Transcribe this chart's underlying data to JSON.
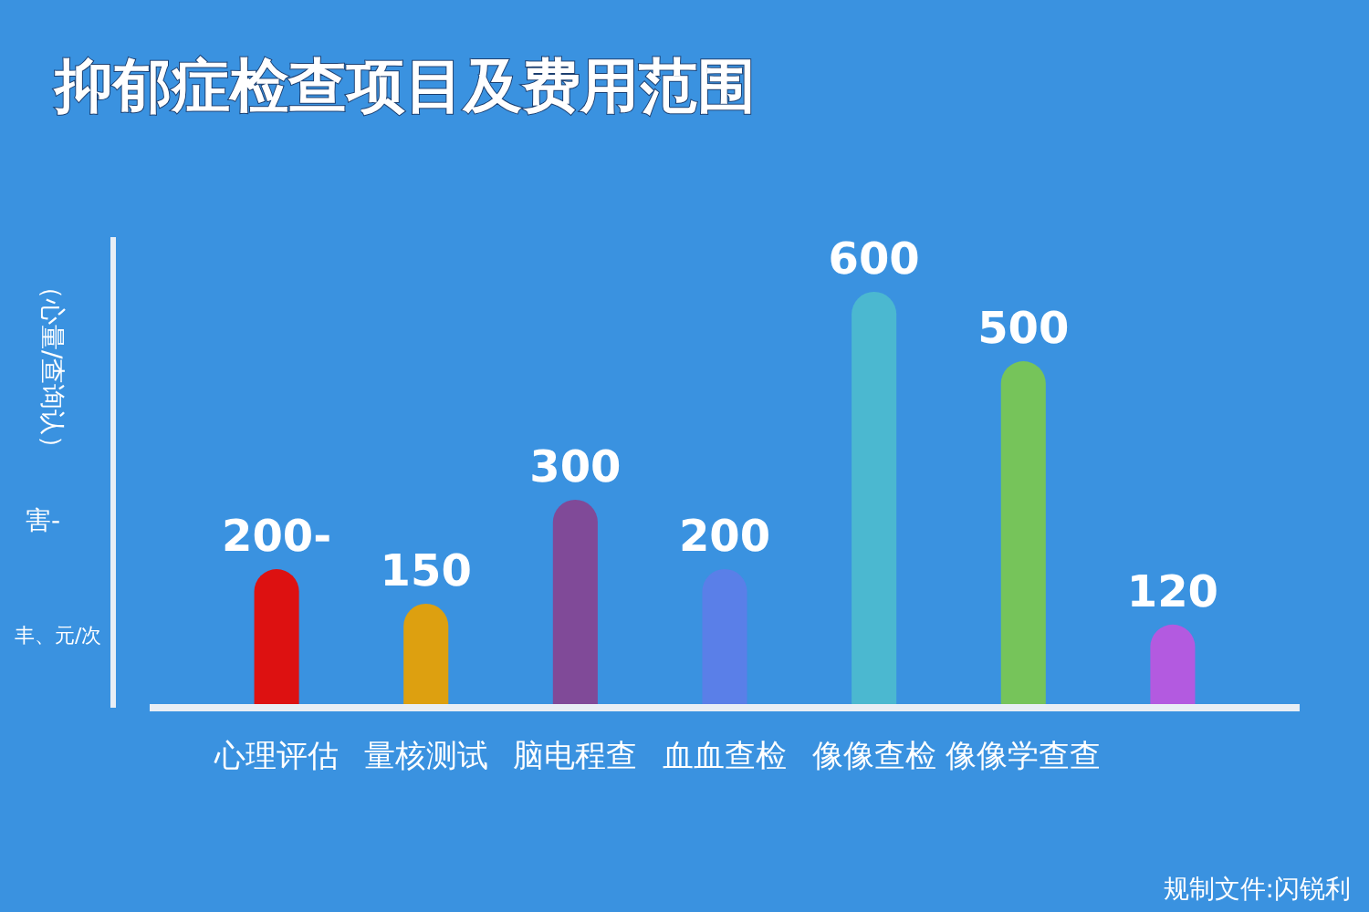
{
  "chart_data": {
    "type": "bar",
    "title": "抑郁症检查项目及费用范围",
    "ylabel": "（心量/查询认）",
    "categories": [
      "心理评估",
      "量核测试",
      "脑电程查",
      "血血查检",
      "像像查检",
      "像像学查查",
      null
    ],
    "values": [
      200,
      150,
      300,
      200,
      600,
      500,
      120
    ],
    "value_labels": [
      "200-",
      "150",
      "300",
      "200",
      "600",
      "500",
      "120"
    ],
    "colors": [
      "#dd1111",
      "#dda010",
      "#804a98",
      "#5a7fe8",
      "#4bb8d0",
      "#76c45a",
      "#b35ae0"
    ],
    "tick_labels": "x",
    "grid": false,
    "annotations": [
      "害-",
      "丰、元/次",
      "规制文件:闪锐利"
    ]
  }
}
